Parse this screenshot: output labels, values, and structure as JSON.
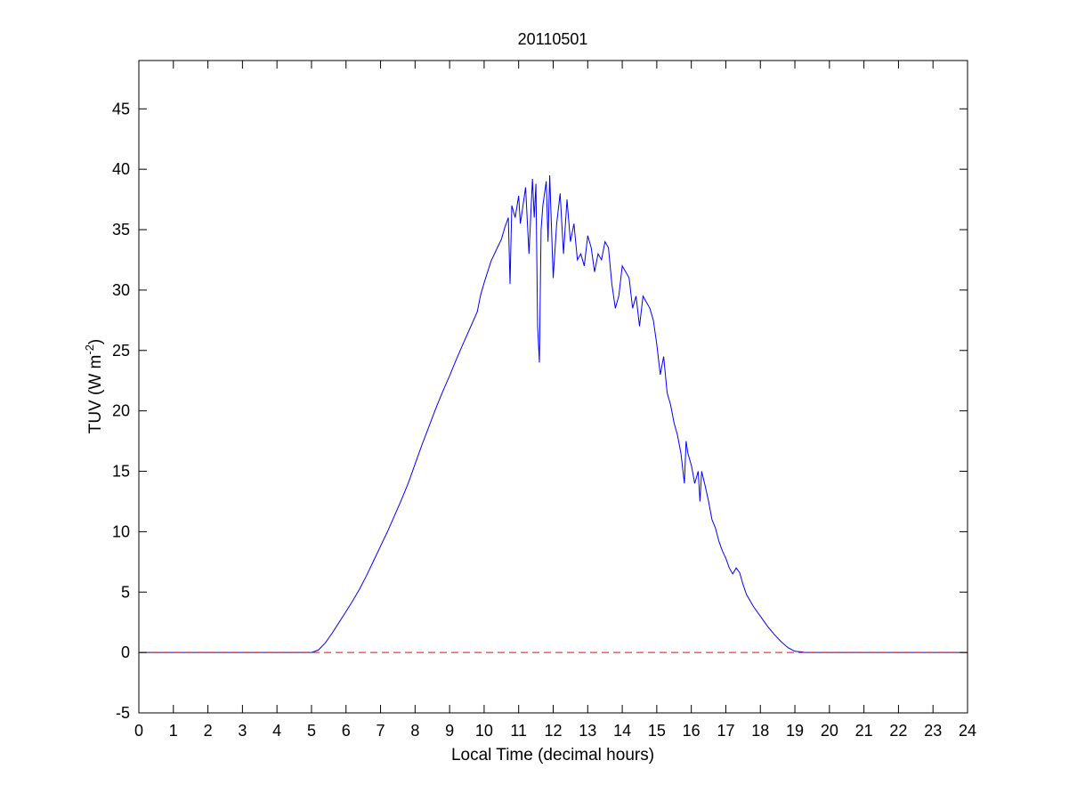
{
  "chart_data": {
    "type": "line",
    "title": "20110501",
    "xlabel": "Local Time (decimal hours)",
    "ylabel_main": "TUV (W m",
    "ylabel_sup": "-2",
    "ylabel_tail": ")",
    "xlim": [
      0,
      24
    ],
    "ylim": [
      -5,
      49
    ],
    "xticks": [
      0,
      1,
      2,
      3,
      4,
      5,
      6,
      7,
      8,
      9,
      10,
      11,
      12,
      13,
      14,
      15,
      16,
      17,
      18,
      19,
      20,
      21,
      22,
      23,
      24
    ],
    "yticks": [
      -5,
      0,
      5,
      10,
      15,
      20,
      25,
      30,
      35,
      40,
      45
    ],
    "grid": false,
    "colors": {
      "series": "#0000ff",
      "reference": "#ff0000",
      "axes": "#000000"
    },
    "series": [
      {
        "style": "solid",
        "x": [
          0,
          5.0,
          5.2,
          5.4,
          5.6,
          5.8,
          6.0,
          6.2,
          6.4,
          6.6,
          6.8,
          7.0,
          7.2,
          7.4,
          7.6,
          7.8,
          7.9,
          8.0,
          8.2,
          8.4,
          8.6,
          8.8,
          9.0,
          9.2,
          9.4,
          9.6,
          9.8,
          9.9,
          10.0,
          10.2,
          10.4,
          10.5,
          10.6,
          10.7,
          10.75,
          10.8,
          10.9,
          11.0,
          11.05,
          11.1,
          11.2,
          11.3,
          11.4,
          11.45,
          11.5,
          11.55,
          11.6,
          11.65,
          11.7,
          11.8,
          11.85,
          11.9,
          12.0,
          12.1,
          12.2,
          12.3,
          12.4,
          12.5,
          12.6,
          12.7,
          12.8,
          12.9,
          13.0,
          13.1,
          13.2,
          13.3,
          13.4,
          13.5,
          13.6,
          13.7,
          13.8,
          13.9,
          14.0,
          14.1,
          14.2,
          14.3,
          14.4,
          14.5,
          14.6,
          14.7,
          14.8,
          14.9,
          15.0,
          15.1,
          15.2,
          15.3,
          15.4,
          15.5,
          15.6,
          15.7,
          15.8,
          15.85,
          15.9,
          16.0,
          16.1,
          16.2,
          16.25,
          16.3,
          16.4,
          16.5,
          16.6,
          16.7,
          16.8,
          16.9,
          17.0,
          17.1,
          17.2,
          17.3,
          17.4,
          17.5,
          17.6,
          17.8,
          18.0,
          18.2,
          18.4,
          18.6,
          18.8,
          19.0,
          19.2,
          19.3,
          24
        ],
        "y": [
          0,
          0,
          0.2,
          0.8,
          1.6,
          2.5,
          3.4,
          4.3,
          5.3,
          6.4,
          7.6,
          8.8,
          10.0,
          11.3,
          12.6,
          14.0,
          14.8,
          15.6,
          17.2,
          18.7,
          20.2,
          21.6,
          22.9,
          24.3,
          25.6,
          26.9,
          28.2,
          29.6,
          30.6,
          32.4,
          33.6,
          34.2,
          35.2,
          36.0,
          30.5,
          37.0,
          36.0,
          37.8,
          35.5,
          36.5,
          38.5,
          33.0,
          39.2,
          36.0,
          38.8,
          27.0,
          24.0,
          35.0,
          37.0,
          39.0,
          34.0,
          39.5,
          31.0,
          35.5,
          38.0,
          33.0,
          37.5,
          34.0,
          35.5,
          32.5,
          33.0,
          32.0,
          34.5,
          33.5,
          31.5,
          33.0,
          32.5,
          34.0,
          33.5,
          30.5,
          28.5,
          29.5,
          32.0,
          31.5,
          31.0,
          28.5,
          29.5,
          27.0,
          29.5,
          29.0,
          28.5,
          27.5,
          25.5,
          23.0,
          24.5,
          21.5,
          20.5,
          19.0,
          18.0,
          16.5,
          14.0,
          17.5,
          16.5,
          15.5,
          14.0,
          15.0,
          12.5,
          15.0,
          13.8,
          12.5,
          11.0,
          10.3,
          9.2,
          8.4,
          7.8,
          7.0,
          6.5,
          7.0,
          6.6,
          5.6,
          4.8,
          3.8,
          3.0,
          2.2,
          1.5,
          0.9,
          0.4,
          0.1,
          0.05,
          0,
          0
        ]
      },
      {
        "style": "dashed",
        "x": [
          0,
          24
        ],
        "y": [
          0,
          0
        ]
      }
    ]
  }
}
